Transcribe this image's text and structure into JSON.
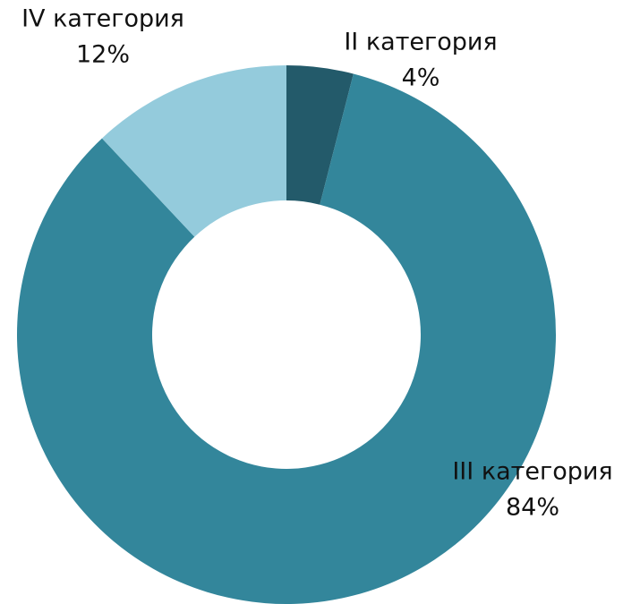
{
  "chart_data": {
    "type": "donut",
    "categories": [
      "II категория",
      "III категория",
      "IV категория"
    ],
    "values": [
      4,
      84,
      12
    ],
    "value_labels": [
      "4%",
      "84%",
      "12%"
    ],
    "colors": [
      "#235a6a",
      "#33869b",
      "#94cbdc"
    ]
  }
}
